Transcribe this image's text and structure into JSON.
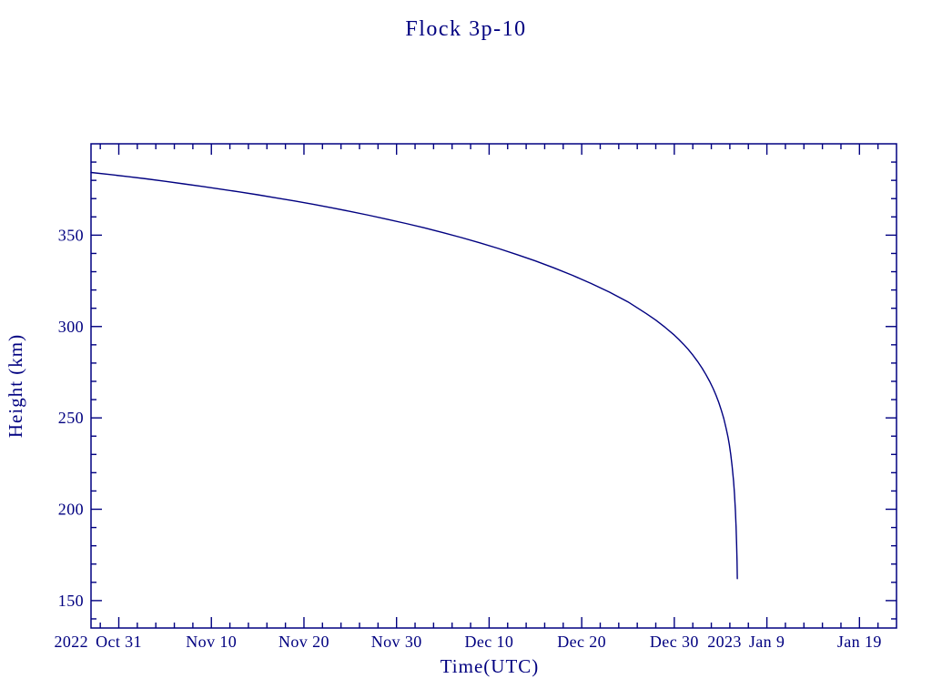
{
  "colors": {
    "ink": "#000080",
    "background": "#ffffff"
  },
  "chart_data": {
    "type": "line",
    "title": "Flock 3p-10",
    "xlabel": "Time(UTC)",
    "ylabel": "Height (km)",
    "x_axis": {
      "start_date": "2022-10-28",
      "range_days": [
        0,
        87
      ],
      "major_ticks": [
        {
          "day": 3,
          "label": "Oct 31",
          "year": "2022"
        },
        {
          "day": 13,
          "label": "Nov 10"
        },
        {
          "day": 23,
          "label": "Nov 20"
        },
        {
          "day": 33,
          "label": "Nov 30"
        },
        {
          "day": 43,
          "label": "Dec 10"
        },
        {
          "day": 53,
          "label": "Dec 20"
        },
        {
          "day": 63,
          "label": "Dec 30"
        },
        {
          "day": 73,
          "label": "Jan 9",
          "year": "2023"
        },
        {
          "day": 83,
          "label": "Jan 19"
        }
      ],
      "minor_step_days": 2
    },
    "y_axis": {
      "range": [
        135,
        400
      ],
      "major_ticks": [
        150,
        200,
        250,
        300,
        350
      ],
      "minor_step": 10
    },
    "grid": false,
    "legend": "none",
    "series": [
      {
        "name": "orbital-height",
        "points": [
          [
            0,
            384.3
          ],
          [
            2,
            383.2
          ],
          [
            4,
            382.0
          ],
          [
            6,
            380.8
          ],
          [
            8,
            379.5
          ],
          [
            10,
            378.1
          ],
          [
            12,
            376.7
          ],
          [
            14,
            375.2
          ],
          [
            16,
            373.7
          ],
          [
            18,
            372.1
          ],
          [
            20,
            370.4
          ],
          [
            22,
            368.7
          ],
          [
            24,
            366.9
          ],
          [
            26,
            365.0
          ],
          [
            28,
            363.0
          ],
          [
            30,
            360.9
          ],
          [
            32,
            358.7
          ],
          [
            34,
            356.4
          ],
          [
            36,
            354.0
          ],
          [
            38,
            351.4
          ],
          [
            40,
            348.7
          ],
          [
            42,
            345.8
          ],
          [
            44,
            342.7
          ],
          [
            46,
            339.4
          ],
          [
            48,
            335.9
          ],
          [
            50,
            332.1
          ],
          [
            52,
            328.0
          ],
          [
            54,
            323.6
          ],
          [
            56,
            318.8
          ],
          [
            58,
            313.5
          ],
          [
            60,
            307.0
          ],
          [
            61,
            303.5
          ],
          [
            62,
            299.6
          ],
          [
            63,
            295.3
          ],
          [
            63.5,
            292.9
          ],
          [
            64,
            290.3
          ],
          [
            64.5,
            287.5
          ],
          [
            65,
            284.4
          ],
          [
            65.5,
            281.0
          ],
          [
            66,
            277.2
          ],
          [
            66.4,
            273.9
          ],
          [
            66.8,
            270.2
          ],
          [
            67.2,
            266.0
          ],
          [
            67.5,
            262.5
          ],
          [
            67.8,
            258.5
          ],
          [
            68.1,
            253.9
          ],
          [
            68.35,
            249.5
          ],
          [
            68.6,
            244.3
          ],
          [
            68.8,
            239.4
          ],
          [
            68.95,
            235.1
          ],
          [
            69.1,
            229.9
          ],
          [
            69.25,
            223.5
          ],
          [
            69.4,
            215.3
          ],
          [
            69.5,
            208.3
          ],
          [
            69.6,
            199.2
          ],
          [
            69.67,
            190.8
          ],
          [
            69.73,
            181.4
          ],
          [
            69.78,
            171.4
          ],
          [
            69.81,
            162.0
          ]
        ]
      }
    ]
  }
}
